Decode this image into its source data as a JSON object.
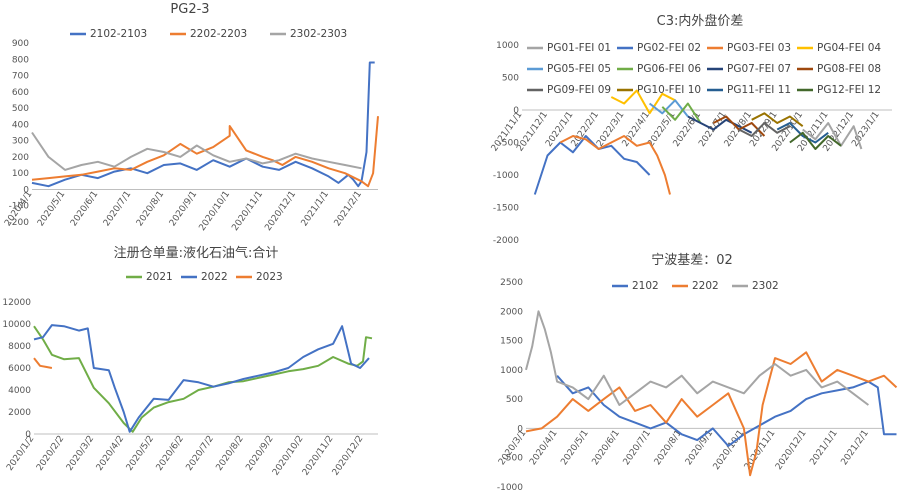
{
  "chart_data": [
    {
      "id": "pg23",
      "type": "line",
      "title": "PG2-3",
      "x_ticks": [
        "2020/4/1",
        "2020/5/1",
        "2020/6/1",
        "2020/7/1",
        "2020/8/1",
        "2020/9/1",
        "2020/10/1",
        "2020/11/1",
        "2020/12/1",
        "2021/1/1",
        "2021/2/1"
      ],
      "ylim": [
        -200,
        900
      ],
      "y_ticks": [
        -200,
        -100,
        0,
        100,
        200,
        300,
        400,
        500,
        600,
        700,
        800,
        900
      ],
      "legend_position": "top",
      "series": [
        {
          "name": "2102-2103",
          "color": "#4472c4",
          "x": [
            0,
            0.5,
            1,
            1.5,
            2,
            2.5,
            3,
            3.5,
            4,
            4.5,
            5,
            5.5,
            6,
            6.5,
            7,
            7.5,
            8,
            8.5,
            9,
            9.3,
            9.6,
            9.75,
            9.9,
            10,
            10.15,
            10.25,
            10.4
          ],
          "y": [
            40,
            20,
            60,
            90,
            70,
            110,
            130,
            100,
            150,
            160,
            120,
            180,
            140,
            190,
            140,
            120,
            170,
            130,
            80,
            40,
            90,
            60,
            20,
            50,
            230,
            780,
            780
          ]
        },
        {
          "name": "2202-2203",
          "color": "#ed7d31",
          "x": [
            0,
            0.5,
            1,
            1.5,
            2,
            2.5,
            3,
            3.5,
            4,
            4.5,
            5,
            5.5,
            6,
            6,
            6.5,
            7,
            7.3,
            7.6,
            8,
            8.5,
            9,
            9.5,
            10,
            10.2,
            10.35,
            10.5
          ],
          "y": [
            60,
            70,
            80,
            90,
            110,
            130,
            120,
            170,
            210,
            280,
            220,
            260,
            330,
            390,
            240,
            200,
            180,
            150,
            200,
            170,
            130,
            100,
            50,
            20,
            100,
            450
          ]
        },
        {
          "name": "2302-2303",
          "color": "#a5a5a5",
          "x": [
            0,
            0.5,
            1,
            1.5,
            2,
            2.5,
            3,
            3.5,
            4,
            4.5,
            5,
            5.5,
            6,
            6.5,
            7,
            7.5,
            8,
            8.5,
            9,
            9.5,
            10
          ],
          "y": [
            350,
            200,
            120,
            150,
            170,
            140,
            200,
            250,
            230,
            200,
            270,
            210,
            170,
            190,
            160,
            180,
            220,
            190,
            170,
            150,
            130
          ]
        }
      ]
    },
    {
      "id": "c3",
      "type": "line",
      "title": "C3:内外盘价差",
      "x_ticks": [
        "2021/11/1",
        "2021/12/1",
        "2022/1/1",
        "2022/2/1",
        "2022/3/1",
        "2022/4/1",
        "2022/5/1",
        "2022/6/1",
        "2022/7/1",
        "2022/8/1",
        "2022/9/1",
        "2022/10/1",
        "2022/11/1",
        "2022/12/1",
        "2023/1/1"
      ],
      "ylim": [
        -2000,
        1000
      ],
      "y_ticks": [
        -2000,
        -1500,
        -1000,
        -500,
        0,
        500,
        1000
      ],
      "legend_position": "top",
      "series": [
        {
          "name": "PG01-FEI 01",
          "color": "#a5a5a5",
          "x": [
            11,
            11.5,
            12,
            12.5,
            13,
            13.3
          ],
          "y": [
            -300,
            -450,
            -200,
            -550,
            -250,
            -600
          ]
        },
        {
          "name": "PG02-FEI 02",
          "color": "#4472c4",
          "x": [
            0.5,
            1,
            1.5,
            2,
            2.5,
            3,
            3.5,
            4,
            4.5,
            5
          ],
          "y": [
            -1300,
            -700,
            -500,
            -650,
            -400,
            -600,
            -550,
            -750,
            -800,
            -1000
          ]
        },
        {
          "name": "PG03-FEI 03",
          "color": "#ed7d31",
          "x": [
            1.5,
            2,
            2.5,
            3,
            3.5,
            4,
            4.5,
            5,
            5.3,
            5.6,
            5.8
          ],
          "y": [
            -500,
            -400,
            -450,
            -600,
            -500,
            -400,
            -550,
            -500,
            -700,
            -1000,
            -1300
          ]
        },
        {
          "name": "PG04-FEI 04",
          "color": "#ffc000",
          "x": [
            3.5,
            4,
            4.5,
            5,
            5.5,
            6
          ],
          "y": [
            200,
            100,
            300,
            -50,
            250,
            150
          ]
        },
        {
          "name": "PG05-FEI 05",
          "color": "#5b9bd5",
          "x": [
            5,
            5.5,
            6,
            6.5
          ],
          "y": [
            100,
            -50,
            150,
            -100
          ]
        },
        {
          "name": "PG06-FEI 06",
          "color": "#70ad47",
          "x": [
            5.5,
            6,
            6.5,
            7
          ],
          "y": [
            50,
            -150,
            100,
            -200
          ]
        },
        {
          "name": "PG07-FEI 07",
          "color": "#264478",
          "x": [
            6.5,
            7,
            7.5,
            8,
            8.5,
            9
          ],
          "y": [
            -100,
            -200,
            -300,
            -150,
            -250,
            -350
          ]
        },
        {
          "name": "PG08-FEI 08",
          "color": "#9e480e",
          "x": [
            7.5,
            8,
            8.5,
            9,
            9.5
          ],
          "y": [
            -200,
            -100,
            -300,
            -200,
            -400
          ]
        },
        {
          "name": "PG09-FEI 09",
          "color": "#636363",
          "x": [
            8.5,
            9,
            9.5,
            10,
            10.5
          ],
          "y": [
            -300,
            -400,
            -200,
            -350,
            -250
          ]
        },
        {
          "name": "PG10-FEI 10",
          "color": "#997300",
          "x": [
            9,
            9.5,
            10,
            10.5,
            11
          ],
          "y": [
            -150,
            -50,
            -200,
            -100,
            -250
          ]
        },
        {
          "name": "PG11-FEI 11",
          "color": "#255e91",
          "x": [
            10,
            10.5,
            11,
            11.5,
            12
          ],
          "y": [
            -300,
            -200,
            -400,
            -500,
            -350
          ]
        },
        {
          "name": "PG12-FEI 12",
          "color": "#43682b",
          "x": [
            10.5,
            11,
            11.5,
            12,
            12.5
          ],
          "y": [
            -500,
            -350,
            -600,
            -400,
            -550
          ]
        }
      ]
    },
    {
      "id": "cangdan",
      "type": "line",
      "title": "注册仓单量:液化石油气:合计",
      "x_ticks": [
        "2020/1/2",
        "2020/2/2",
        "2020/3/2",
        "2020/4/2",
        "2020/5/2",
        "2020/6/2",
        "2020/7/2",
        "2020/8/2",
        "2020/9/2",
        "2020/10/2",
        "2020/11/2",
        "2020/12/2"
      ],
      "ylim": [
        0,
        12000
      ],
      "y_ticks": [
        0,
        2000,
        4000,
        6000,
        8000,
        10000,
        12000
      ],
      "legend_position": "top",
      "series": [
        {
          "name": "2021",
          "color": "#70ad47",
          "x": [
            0,
            0.3,
            0.6,
            1,
            1.5,
            2,
            2.5,
            3,
            3.3,
            3.6,
            4,
            4.5,
            5,
            5.5,
            6,
            6.5,
            7,
            7.5,
            8,
            8.5,
            9,
            9.5,
            10,
            10.5,
            10.8,
            11,
            11.1,
            11.3
          ],
          "y": [
            9800,
            8600,
            7200,
            6800,
            6900,
            4200,
            2800,
            1000,
            200,
            1500,
            2400,
            2900,
            3200,
            4000,
            4300,
            4700,
            4800,
            5100,
            5400,
            5700,
            5900,
            6200,
            7000,
            6400,
            6200,
            6600,
            8800,
            8700
          ]
        },
        {
          "name": "2022",
          "color": "#4472c4",
          "x": [
            0,
            0.3,
            0.6,
            1,
            1.5,
            1.8,
            2,
            2.5,
            2.7,
            3,
            3.2,
            3.5,
            4,
            4.5,
            5,
            5.5,
            6,
            6.5,
            7,
            7.5,
            8,
            8.5,
            9,
            9.5,
            10,
            10.3,
            10.6,
            10.9,
            11.2
          ],
          "y": [
            8600,
            8800,
            9900,
            9800,
            9400,
            9600,
            6000,
            5800,
            4200,
            2000,
            200,
            1500,
            3200,
            3100,
            4900,
            4700,
            4300,
            4600,
            5000,
            5300,
            5600,
            6000,
            7000,
            7700,
            8200,
            9800,
            6400,
            6000,
            6900
          ]
        },
        {
          "name": "2023",
          "color": "#ed7d31",
          "x": [
            0,
            0.2,
            0.4,
            0.6
          ],
          "y": [
            6900,
            6200,
            6100,
            6000
          ]
        }
      ]
    },
    {
      "id": "ningbo",
      "type": "line",
      "title": "宁波基差：02",
      "x_ticks": [
        "2020/3/1",
        "2020/4/1",
        "2020/5/1",
        "2020/6/1",
        "2020/7/1",
        "2020/8/1",
        "2020/9/1",
        "2020/10/1",
        "2020/11/1",
        "2020/12/1",
        "2021/1/1",
        "2021/2/1"
      ],
      "ylim": [
        -1000,
        2500
      ],
      "y_ticks": [
        -1000,
        -500,
        0,
        500,
        1000,
        1500,
        2000,
        2500
      ],
      "legend_position": "top",
      "series": [
        {
          "name": "2102",
          "color": "#4472c4",
          "x": [
            1,
            1.5,
            2,
            2.5,
            3,
            3.5,
            4,
            4.5,
            5,
            5.5,
            6,
            6.5,
            7,
            7.5,
            8,
            8.5,
            9,
            9.5,
            10,
            10.5,
            11,
            11.3,
            11.5,
            11.7,
            11.9
          ],
          "y": [
            900,
            600,
            700,
            400,
            200,
            100,
            0,
            100,
            -100,
            -200,
            0,
            -300,
            -100,
            50,
            200,
            300,
            500,
            600,
            650,
            700,
            800,
            700,
            -100,
            -100,
            -100
          ]
        },
        {
          "name": "2202",
          "color": "#ed7d31",
          "x": [
            0,
            0.5,
            1,
            1.5,
            2,
            2.5,
            3,
            3.5,
            4,
            4.5,
            5,
            5.5,
            6,
            6.5,
            7,
            7.2,
            7.4,
            7.6,
            8,
            8.5,
            9,
            9.5,
            10,
            10.5,
            11,
            11.5,
            11.9
          ],
          "y": [
            -50,
            0,
            200,
            500,
            300,
            500,
            700,
            300,
            400,
            100,
            500,
            200,
            400,
            600,
            0,
            -800,
            -400,
            400,
            1200,
            1100,
            1300,
            800,
            1000,
            900,
            800,
            900,
            700
          ]
        },
        {
          "name": "2302",
          "color": "#a5a5a5",
          "x": [
            0,
            0.2,
            0.4,
            0.6,
            0.8,
            1,
            1.5,
            2,
            2.5,
            3,
            3.5,
            4,
            4.5,
            5,
            5.5,
            6,
            6.5,
            7,
            7.5,
            8,
            8.5,
            9,
            9.5,
            10,
            10.5,
            11
          ],
          "y": [
            1000,
            1400,
            2000,
            1700,
            1300,
            800,
            700,
            500,
            900,
            400,
            600,
            800,
            700,
            900,
            600,
            800,
            700,
            600,
            900,
            1100,
            900,
            1000,
            700,
            800,
            600,
            400
          ]
        }
      ]
    }
  ]
}
